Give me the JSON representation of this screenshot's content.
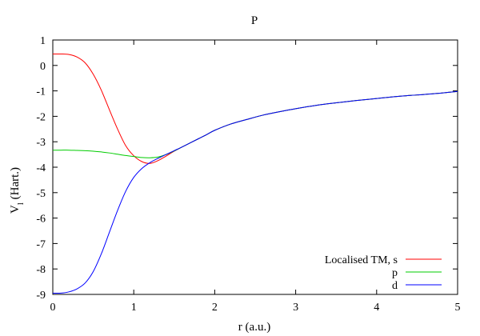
{
  "chart_data": {
    "type": "line",
    "title": "P",
    "xlabel": "r (a.u.)",
    "ylabel_main": "V",
    "ylabel_sub": "l",
    "ylabel_unit": " (Hart.)",
    "xlim": [
      0,
      5
    ],
    "ylim": [
      -9,
      1
    ],
    "xticks": [
      0,
      1,
      2,
      3,
      4,
      5
    ],
    "yticks": [
      1,
      0,
      -1,
      -2,
      -3,
      -4,
      -5,
      -6,
      -7,
      -8,
      -9
    ],
    "grid": false,
    "legend_position": "bottom-right",
    "x": [
      0,
      0.1,
      0.2,
      0.3,
      0.4,
      0.5,
      0.6,
      0.7,
      0.8,
      0.9,
      1.0,
      1.1,
      1.2,
      1.3,
      1.4,
      1.5,
      1.6,
      1.7,
      1.8,
      1.9,
      2.0,
      2.2,
      2.4,
      2.6,
      2.8,
      3.0,
      3.25,
      3.5,
      3.75,
      4.0,
      4.25,
      4.5,
      4.75,
      5.0
    ],
    "series": [
      {
        "name": "Localised TM, s",
        "color": "#ff0000",
        "values": [
          0.45,
          0.45,
          0.43,
          0.33,
          0.1,
          -0.35,
          -0.98,
          -1.75,
          -2.5,
          -3.15,
          -3.55,
          -3.78,
          -3.85,
          -3.74,
          -3.56,
          -3.37,
          -3.2,
          -3.04,
          -2.88,
          -2.72,
          -2.55,
          -2.3,
          -2.12,
          -1.95,
          -1.82,
          -1.7,
          -1.57,
          -1.47,
          -1.38,
          -1.3,
          -1.22,
          -1.16,
          -1.1,
          -1.02
        ]
      },
      {
        "name": "p",
        "color": "#00cc00",
        "values": [
          -3.33,
          -3.33,
          -3.33,
          -3.34,
          -3.35,
          -3.37,
          -3.4,
          -3.44,
          -3.49,
          -3.54,
          -3.58,
          -3.62,
          -3.63,
          -3.6,
          -3.5,
          -3.36,
          -3.2,
          -3.04,
          -2.88,
          -2.72,
          -2.55,
          -2.3,
          -2.12,
          -1.95,
          -1.82,
          -1.7,
          -1.57,
          -1.47,
          -1.38,
          -1.3,
          -1.22,
          -1.16,
          -1.1,
          -1.02
        ]
      },
      {
        "name": "d",
        "color": "#0000ff",
        "values": [
          -8.95,
          -8.95,
          -8.9,
          -8.78,
          -8.55,
          -8.1,
          -7.4,
          -6.55,
          -5.7,
          -4.95,
          -4.4,
          -4.05,
          -3.82,
          -3.65,
          -3.5,
          -3.35,
          -3.2,
          -3.04,
          -2.88,
          -2.72,
          -2.55,
          -2.3,
          -2.12,
          -1.95,
          -1.82,
          -1.7,
          -1.57,
          -1.47,
          -1.38,
          -1.3,
          -1.22,
          -1.16,
          -1.1,
          -1.02
        ]
      }
    ]
  }
}
